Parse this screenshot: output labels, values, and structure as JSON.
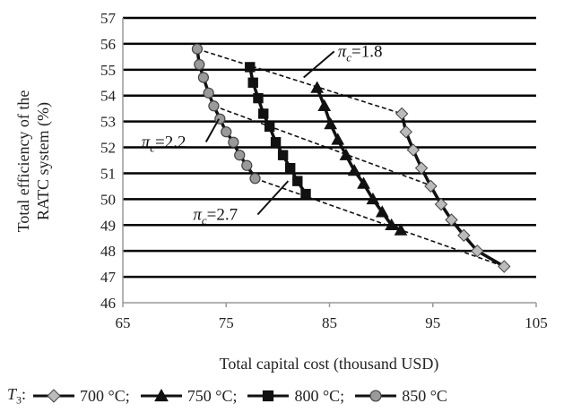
{
  "chart_data": {
    "type": "line",
    "xlabel": "Total capital cost (thousand USD)",
    "ylabel_lines": [
      "Total efficiency of the",
      "RATC system (%)"
    ],
    "xlim": [
      65,
      105
    ],
    "ylim": [
      46,
      57
    ],
    "xticks": [
      "65",
      "75",
      "85",
      "95",
      "105"
    ],
    "yticks": [
      "46",
      "47",
      "48",
      "49",
      "50",
      "51",
      "52",
      "53",
      "54",
      "55",
      "56",
      "57"
    ],
    "grid": "horizontal",
    "series": [
      {
        "name": "700 °C",
        "marker": "diamond",
        "color": "#7f7f7f",
        "points": [
          [
            92.0,
            53.3
          ],
          [
            92.4,
            52.6
          ],
          [
            93.1,
            51.9
          ],
          [
            93.9,
            51.2
          ],
          [
            94.8,
            50.5
          ],
          [
            95.8,
            49.8
          ],
          [
            96.8,
            49.2
          ],
          [
            98.0,
            48.6
          ],
          [
            99.3,
            48.0
          ],
          [
            101.9,
            47.4
          ]
        ]
      },
      {
        "name": "750 °C",
        "marker": "triangle",
        "color": "#111111",
        "points": [
          [
            83.8,
            54.3
          ],
          [
            84.5,
            53.6
          ],
          [
            85.1,
            52.9
          ],
          [
            85.8,
            52.3
          ],
          [
            86.6,
            51.7
          ],
          [
            87.4,
            51.1
          ],
          [
            88.3,
            50.6
          ],
          [
            89.2,
            50.0
          ],
          [
            90.1,
            49.5
          ],
          [
            91.0,
            49.0
          ],
          [
            91.9,
            48.8
          ]
        ]
      },
      {
        "name": "800 °C",
        "marker": "square",
        "color": "#111111",
        "points": [
          [
            77.3,
            55.1
          ],
          [
            77.6,
            54.5
          ],
          [
            78.1,
            53.9
          ],
          [
            78.6,
            53.3
          ],
          [
            79.2,
            52.8
          ],
          [
            79.8,
            52.2
          ],
          [
            80.5,
            51.7
          ],
          [
            81.2,
            51.2
          ],
          [
            81.9,
            50.7
          ],
          [
            82.7,
            50.2
          ]
        ]
      },
      {
        "name": "850 °C",
        "marker": "circle",
        "color": "#999999",
        "points": [
          [
            72.2,
            55.8
          ],
          [
            72.4,
            55.2
          ],
          [
            72.8,
            54.7
          ],
          [
            73.3,
            54.1
          ],
          [
            73.8,
            53.6
          ],
          [
            74.4,
            53.1
          ],
          [
            75.0,
            52.6
          ],
          [
            75.7,
            52.2
          ],
          [
            76.3,
            51.7
          ],
          [
            77.0,
            51.3
          ],
          [
            77.8,
            50.8
          ]
        ]
      }
    ],
    "pressure_lines": [
      {
        "label": "π_c=1.8",
        "points": [
          [
            72.2,
            55.8
          ],
          [
            92.0,
            53.3
          ]
        ]
      },
      {
        "label": "π_c=2.2",
        "points": [
          [
            73.8,
            53.6
          ],
          [
            95.0,
            50.5
          ]
        ]
      },
      {
        "label": "π_c=2.7",
        "points": [
          [
            77.8,
            50.8
          ],
          [
            101.9,
            47.4
          ]
        ]
      }
    ],
    "annotations": [
      {
        "label_base": "π",
        "label_sub": "c",
        "label_rest": "=1.8",
        "text_at": [
          85.8,
          55.5
        ],
        "arrow_to": [
          82.5,
          54.7
        ]
      },
      {
        "label_base": "π",
        "label_sub": "c",
        "label_rest": "=2.2",
        "text_at": [
          66.8,
          52.0
        ],
        "arrow_to": [
          74.3,
          53.1
        ]
      },
      {
        "label_base": "π",
        "label_sub": "c",
        "label_rest": "=2.7",
        "text_at": [
          71.8,
          49.2
        ],
        "arrow_to": [
          81.0,
          50.7
        ]
      }
    ],
    "legend": {
      "position": "bottom",
      "prefix_base": "T",
      "prefix_sub": "3",
      "prefix_rest": ":",
      "entries": [
        "700 °C;",
        "750 °C;",
        "800 °C;",
        "850 °C"
      ]
    }
  }
}
